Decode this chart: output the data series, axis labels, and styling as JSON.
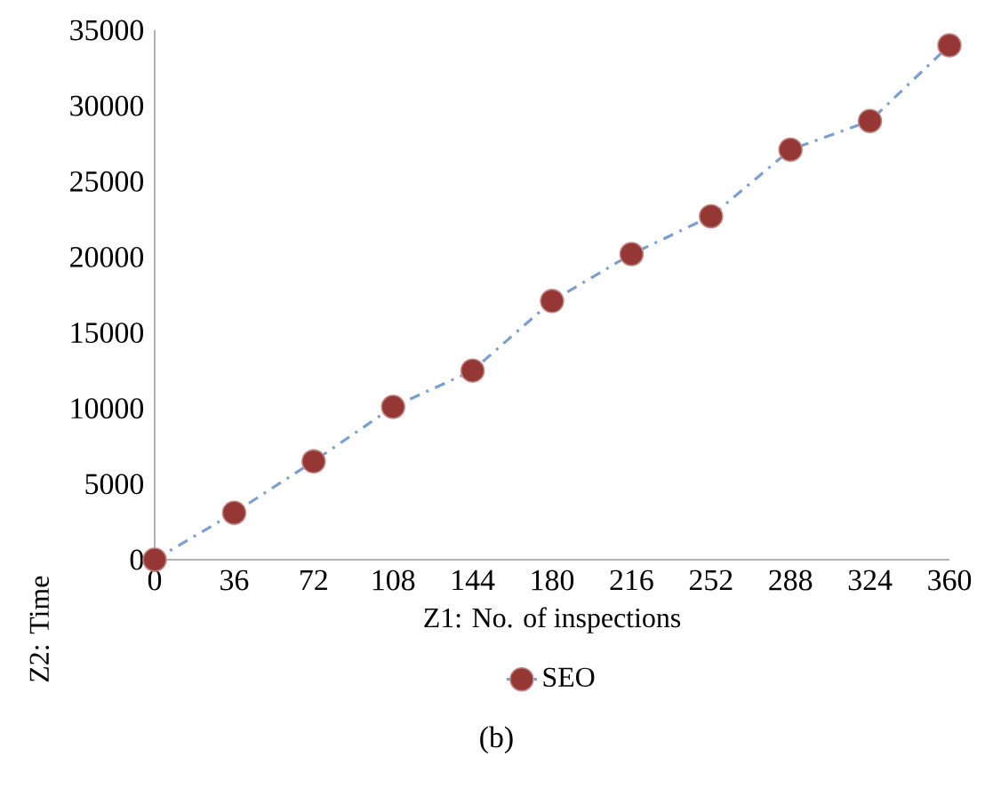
{
  "chart_data": {
    "type": "line",
    "xlabel": "Z1: No. of inspections",
    "ylabel": "Z2: Time",
    "categories": [
      "0",
      "36",
      "72",
      "108",
      "144",
      "180",
      "216",
      "252",
      "288",
      "324",
      "360"
    ],
    "series": [
      {
        "name": "SEO",
        "color": "#7ba0d0",
        "values": [
          0,
          3100,
          6500,
          10100,
          12500,
          17100,
          20200,
          22700,
          27100,
          29000,
          34000
        ]
      }
    ],
    "ylim": [
      0,
      35000
    ],
    "yticks": [
      0,
      5000,
      10000,
      15000,
      20000,
      25000,
      30000,
      35000
    ],
    "grid": false,
    "legend": "bottom",
    "marker": "circle",
    "line_style": "dashdot",
    "annotations": [
      "(b)"
    ]
  }
}
